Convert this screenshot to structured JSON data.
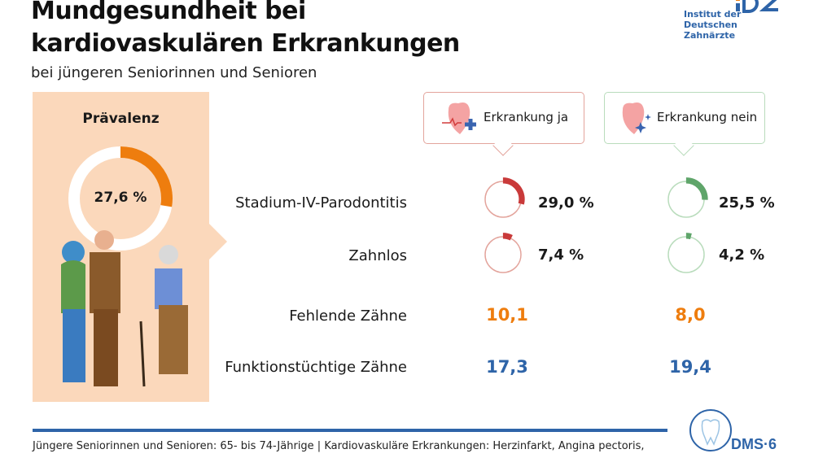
{
  "header": {
    "title_line1": "Mundgesundheit bei",
    "title_line2": "kardiovaskulären Erkrankungen",
    "subtitle": "bei jüngeren Seniorinnen und Senioren"
  },
  "logo": {
    "line1": "Institut der",
    "line2": "Deutschen Zahnärzte",
    "mark": "IDZ"
  },
  "prevalence": {
    "label": "Prävalenz",
    "value_text": "27,6 %",
    "value": 27.6,
    "color": "#ee7d0e"
  },
  "groups": [
    {
      "label": "Erkrankung ja",
      "icon": "heart-plus-icon",
      "color": "#c93a3a",
      "border": "#e3a49c"
    },
    {
      "label": "Erkrankung nein",
      "icon": "heart-sparkle-icon",
      "color": "#5fa56a",
      "border": "#b9dcbc"
    }
  ],
  "rows": [
    {
      "label": "Stadium-IV-Parodontitis",
      "type": "percent",
      "values": [
        29.0,
        25.5
      ],
      "texts": [
        "29,0 %",
        "25,5 %"
      ]
    },
    {
      "label": "Zahnlos",
      "type": "percent",
      "values": [
        7.4,
        4.2
      ],
      "texts": [
        "7,4 %",
        "4,2 %"
      ]
    },
    {
      "label": "Fehlende Zähne",
      "type": "number",
      "texts": [
        "10,1",
        "8,0"
      ],
      "color": "#ee7d0e"
    },
    {
      "label": "Funktionstüchtige Zähne",
      "type": "number",
      "texts": [
        "17,3",
        "19,4"
      ],
      "color": "#2e64a8"
    }
  ],
  "footer": {
    "note": "Jüngere Seniorinnen und Senioren: 65- bis 74-Jährige | Kardiovaskuläre Erkrankungen: Herzinfarkt, Angina pectoris,",
    "badge": "DMS·6"
  }
}
